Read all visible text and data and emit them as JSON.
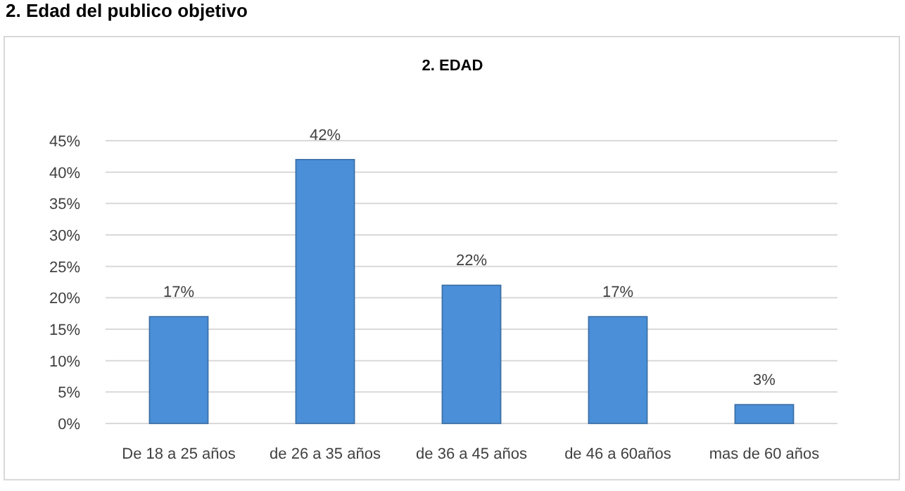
{
  "chart_data": {
    "type": "bar",
    "title": "2. EDAD",
    "annotations": [
      "2.   Edad del publico objetivo"
    ],
    "categories": [
      "De 18 a 25 años",
      "de 26 a 35 años",
      "de 36 a 45 años",
      "de 46 a 60años",
      "mas de 60 años"
    ],
    "values": [
      17,
      42,
      22,
      17,
      3
    ],
    "color": "#4a8fd8",
    "value_labels": [
      "17%",
      "42%",
      "22%",
      "17%",
      "3%"
    ],
    "ylim": [
      0,
      45
    ],
    "yticks": [
      {
        "value": 0,
        "label": "0%"
      },
      {
        "value": 5,
        "label": "5%"
      },
      {
        "value": 10,
        "label": "10%"
      },
      {
        "value": 15,
        "label": "15%"
      },
      {
        "value": 20,
        "label": "20%"
      },
      {
        "value": 25,
        "label": "25%"
      },
      {
        "value": 30,
        "label": "30%"
      },
      {
        "value": 35,
        "label": "35%"
      },
      {
        "value": 40,
        "label": "40%"
      },
      {
        "value": 45,
        "label": "45%"
      }
    ],
    "grid": "y"
  }
}
